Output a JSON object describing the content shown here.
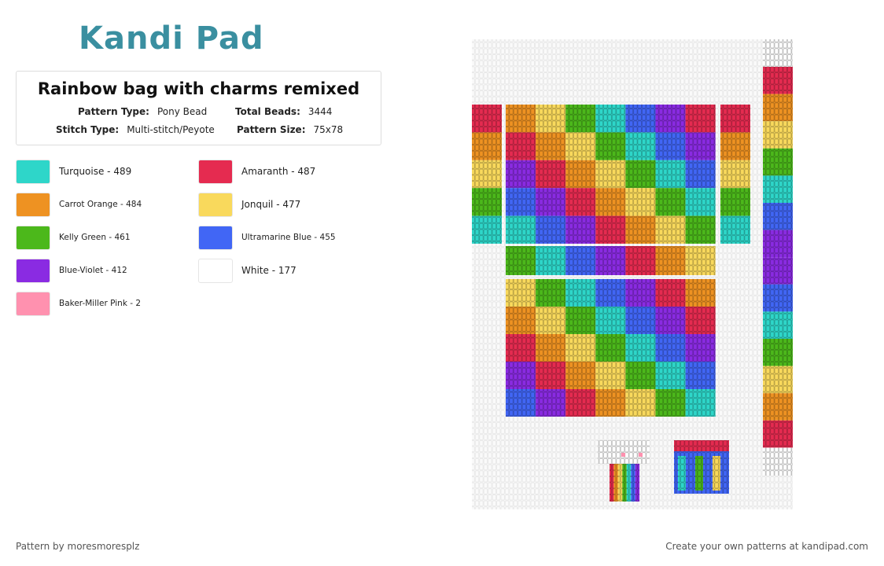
{
  "logo": "Kandi Pad",
  "pattern": {
    "title": "Rainbow bag with charms remixed",
    "fields": [
      {
        "label": "Pattern Type:",
        "value": "Pony Bead"
      },
      {
        "label": "Total Beads:",
        "value": 3444
      },
      {
        "label": "Stitch Type:",
        "value": "Multi-stitch/Peyote"
      },
      {
        "label": "Pattern Size:",
        "value": "75x78"
      }
    ]
  },
  "legend": [
    {
      "label": "Turquoise - 489",
      "color": "#2ed6c9"
    },
    {
      "label": "Carrot Orange - 484",
      "color": "#ee9222"
    },
    {
      "label": "Kelly Green - 461",
      "color": "#4cb81b"
    },
    {
      "label": "Blue-Violet - 412",
      "color": "#8a2be2"
    },
    {
      "label": "Baker-Miller Pink - 2",
      "color": "#ff91af"
    },
    {
      "label": "Amaranth - 487",
      "color": "#e52b50"
    },
    {
      "label": "Jonquil - 477",
      "color": "#f9d95c"
    },
    {
      "label": "Ultramarine Blue - 455",
      "color": "#4166f5"
    },
    {
      "label": "White - 177",
      "color": "#ffffff"
    }
  ],
  "footer": {
    "author": "Pattern by moresmoresplz",
    "cta": "Create your own patterns at kandipad.com"
  }
}
